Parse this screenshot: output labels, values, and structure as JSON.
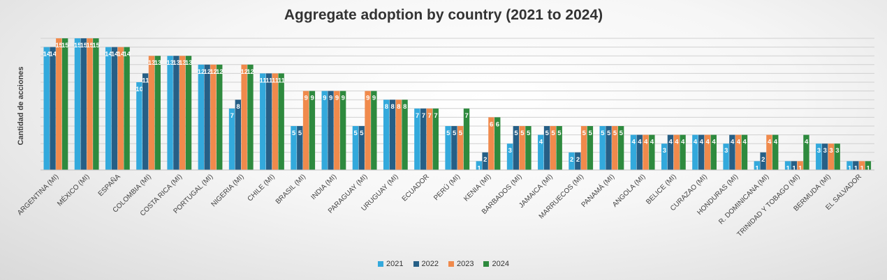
{
  "chart_data": {
    "type": "bar",
    "title": "Aggregate adoption by country (2021 to 2024)",
    "xlabel": "",
    "ylabel": "Cantidad de acciones",
    "ylim": [
      0,
      15
    ],
    "grid": true,
    "legend_position": "bottom",
    "categories": [
      "ARGENTINA (MI)",
      "MÉXICO (MI)",
      "ESPAÑA",
      "COLOMBIA (MI)",
      "COSTA RICA (MI)",
      "PORTUGAL (MI)",
      "NIGERIA (MI)",
      "CHILE (MI)",
      "BRASIL (MI)",
      "INDIA (MI)",
      "PARAGUAY (MI)",
      "URUGUAY (MI)",
      "ECUADOR",
      "PERÚ (MI)",
      "KENIA (MI)",
      "BARBADOS (MI)",
      "JAMAICA (MI)",
      "MARRUECOS (MI)",
      "PANAMÁ (MI)",
      "ANGOLA (MI)",
      "BELICE (MI)",
      "CURAZAO (MI)",
      "HONDURAS (MI)",
      "R. DOMINICANA (MI)",
      "TRINIDAD Y TOBAGO (MI)",
      "BERMUDA (MI)",
      "EL SALVADOR"
    ],
    "series": [
      {
        "name": "2021",
        "color": "#33a9dc",
        "values": [
          14,
          15,
          14,
          10,
          13,
          12,
          7,
          11,
          5,
          9,
          5,
          8,
          7,
          5,
          1,
          3,
          4,
          2,
          5,
          4,
          3,
          4,
          3,
          1,
          1,
          3,
          1
        ]
      },
      {
        "name": "2022",
        "color": "#265f86",
        "values": [
          14,
          15,
          14,
          11,
          13,
          12,
          8,
          11,
          5,
          9,
          5,
          8,
          7,
          5,
          2,
          5,
          5,
          2,
          5,
          4,
          4,
          4,
          4,
          2,
          1,
          3,
          1
        ]
      },
      {
        "name": "2023",
        "color": "#f08a4c",
        "values": [
          15,
          15,
          14,
          13,
          13,
          12,
          12,
          11,
          9,
          9,
          9,
          8,
          7,
          5,
          6,
          5,
          5,
          5,
          5,
          4,
          4,
          4,
          4,
          4,
          1,
          3,
          1
        ]
      },
      {
        "name": "2024",
        "color": "#2e8a3e",
        "values": [
          15,
          15,
          14,
          13,
          13,
          12,
          12,
          11,
          9,
          9,
          9,
          8,
          7,
          7,
          6,
          5,
          5,
          5,
          5,
          4,
          4,
          4,
          4,
          4,
          4,
          3,
          1
        ]
      }
    ]
  }
}
